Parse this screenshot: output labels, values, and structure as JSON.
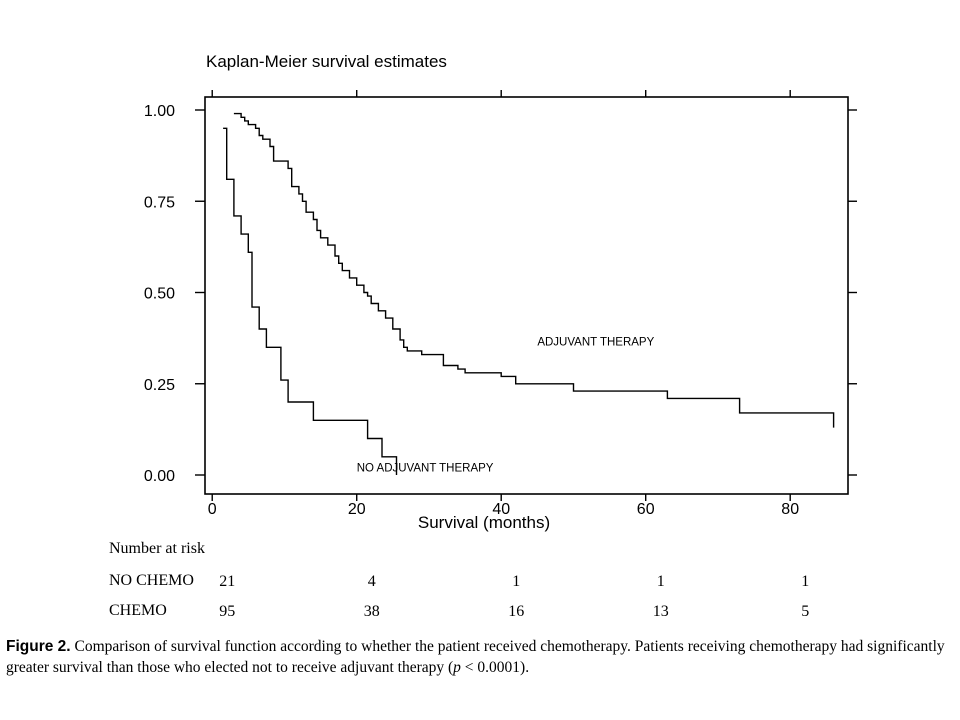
{
  "chart_data": {
    "type": "line",
    "title": "Kaplan-Meier survival estimates",
    "xlabel": "Survival (months)",
    "ylabel": "",
    "xlim": [
      -1,
      88
    ],
    "ylim": [
      0,
      1
    ],
    "x_ticks": [
      0,
      20,
      40,
      60,
      80
    ],
    "y_ticks": [
      0.0,
      0.25,
      0.5,
      0.75,
      1.0
    ],
    "y_tick_labels": [
      "0.00",
      "0.25",
      "0.50",
      "0.75",
      "1.00"
    ],
    "grid": false,
    "line_color": "#000000",
    "series": [
      {
        "name": "ADJUVANT THERAPY",
        "points": [
          [
            3,
            0.99
          ],
          [
            4,
            0.98
          ],
          [
            4.5,
            0.97
          ],
          [
            5,
            0.96
          ],
          [
            6,
            0.95
          ],
          [
            6.5,
            0.93
          ],
          [
            7,
            0.92
          ],
          [
            8,
            0.9
          ],
          [
            8.5,
            0.86
          ],
          [
            10.5,
            0.84
          ],
          [
            11,
            0.79
          ],
          [
            12,
            0.77
          ],
          [
            12.5,
            0.75
          ],
          [
            13,
            0.72
          ],
          [
            14,
            0.7
          ],
          [
            14.5,
            0.67
          ],
          [
            15,
            0.65
          ],
          [
            16,
            0.63
          ],
          [
            17,
            0.6
          ],
          [
            17.5,
            0.58
          ],
          [
            18,
            0.56
          ],
          [
            19,
            0.54
          ],
          [
            20,
            0.52
          ],
          [
            21,
            0.5
          ],
          [
            21.5,
            0.49
          ],
          [
            22,
            0.47
          ],
          [
            23,
            0.45
          ],
          [
            24,
            0.43
          ],
          [
            25,
            0.4
          ],
          [
            26,
            0.37
          ],
          [
            26.5,
            0.35
          ],
          [
            27,
            0.34
          ],
          [
            29,
            0.33
          ],
          [
            32,
            0.3
          ],
          [
            34,
            0.29
          ],
          [
            35,
            0.28
          ],
          [
            40,
            0.27
          ],
          [
            42,
            0.25
          ],
          [
            50,
            0.23
          ],
          [
            63,
            0.21
          ],
          [
            73,
            0.17
          ],
          [
            86,
            0.17
          ],
          [
            86,
            0.13
          ]
        ]
      },
      {
        "name": "NO ADJUVANT THERAPY",
        "points": [
          [
            1.5,
            0.95
          ],
          [
            2,
            0.81
          ],
          [
            3,
            0.71
          ],
          [
            4,
            0.66
          ],
          [
            5,
            0.61
          ],
          [
            5.5,
            0.46
          ],
          [
            6.5,
            0.4
          ],
          [
            7.5,
            0.35
          ],
          [
            9.5,
            0.26
          ],
          [
            10.5,
            0.2
          ],
          [
            14,
            0.15
          ],
          [
            21.5,
            0.1
          ],
          [
            23.5,
            0.05
          ],
          [
            25.5,
            0.0
          ]
        ]
      }
    ],
    "annotations": [
      {
        "text": "ADJUVANT THERAPY",
        "x": 45,
        "y": 0.355
      },
      {
        "text": "NO ADJUVANT THERAPY",
        "x": 20,
        "y": 0.01
      }
    ]
  },
  "risk_table": {
    "header": "Number at risk",
    "rows": [
      {
        "label": "NO CHEMO",
        "values": [
          "21",
          "4",
          "1",
          "1",
          "1"
        ]
      },
      {
        "label": "CHEMO",
        "values": [
          "95",
          "38",
          "16",
          "13",
          "5"
        ]
      }
    ],
    "columns_at": [
      0,
      20,
      40,
      60,
      80
    ]
  },
  "caption": {
    "label": "Figure 2.",
    "text_before_p": " Comparison of survival function according to whether the patient received chemotherapy. Patients receiving chemotherapy had significantly greater survival than those who elected not to receive adjuvant therapy (",
    "p_symbol": "p",
    "text_after_p": " < 0.0001)."
  }
}
